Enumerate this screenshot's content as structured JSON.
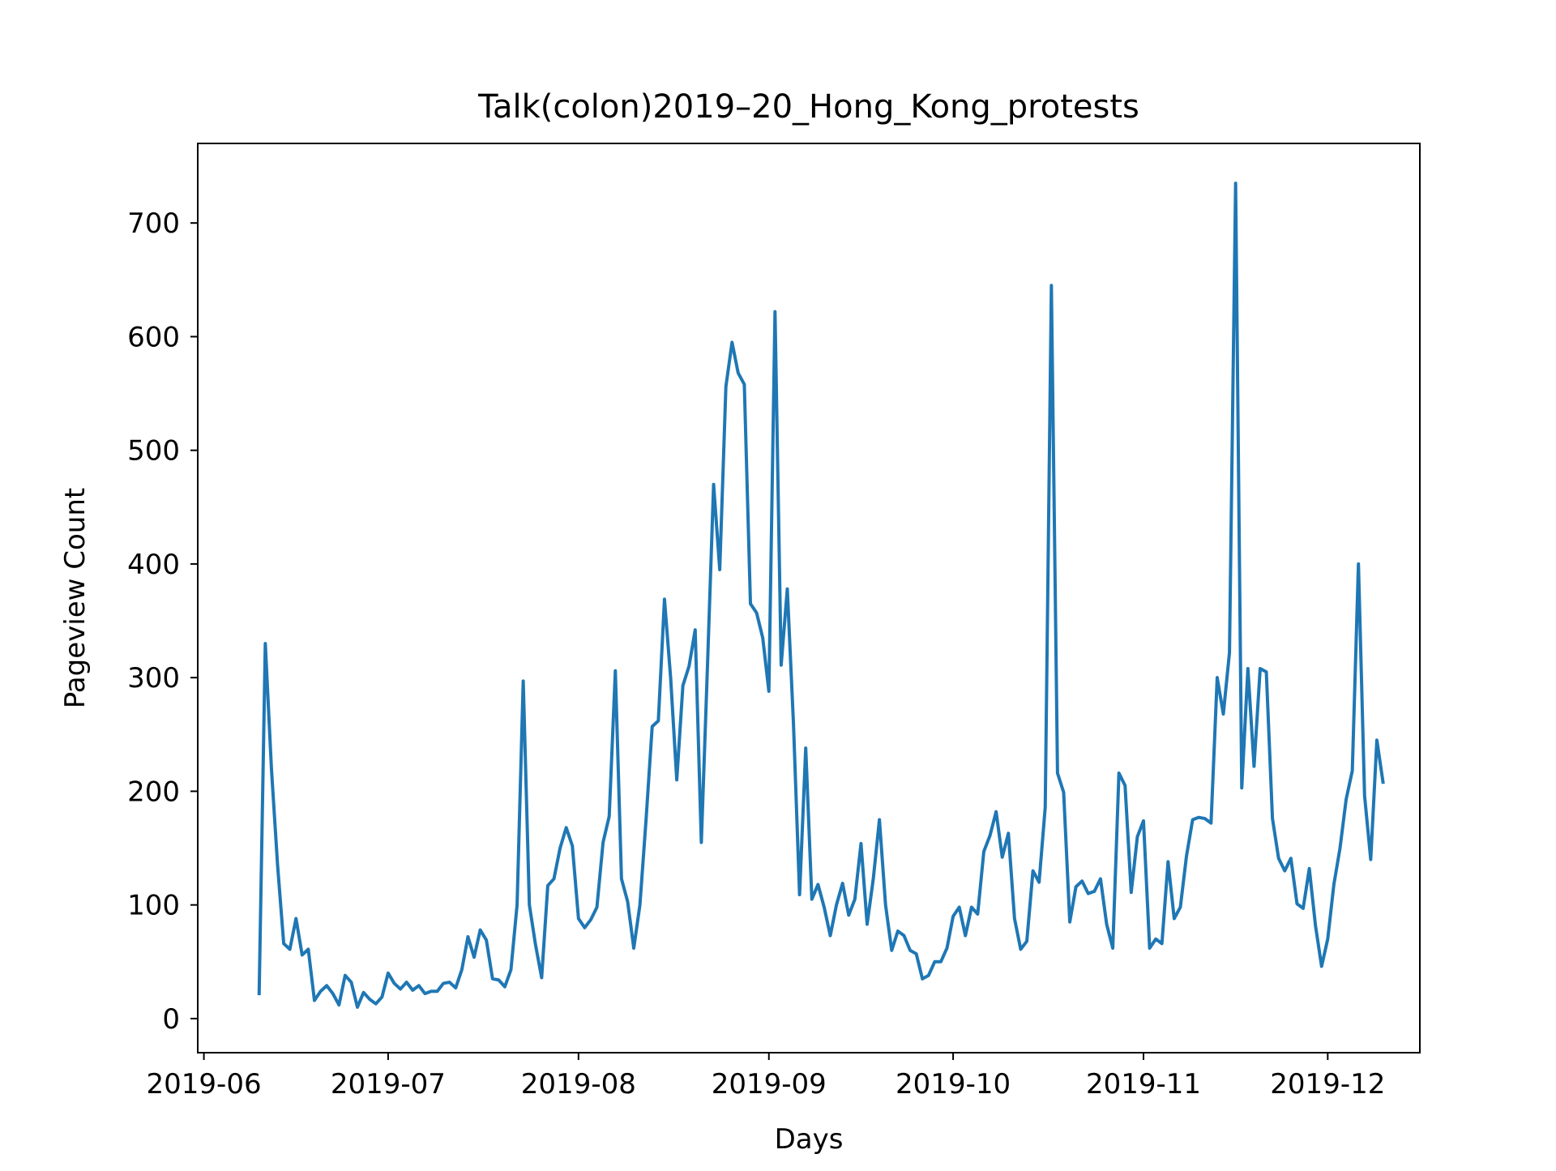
{
  "chart_data": {
    "type": "line",
    "title": "Talk(colon)2019–20_Hong_Kong_protests",
    "xlabel": "Days",
    "ylabel": "Pageview Count",
    "x_ticks": [
      "2019-06",
      "2019-07",
      "2019-08",
      "2019-09",
      "2019-10",
      "2019-11",
      "2019-12"
    ],
    "y_ticks": [
      0,
      100,
      200,
      300,
      400,
      500,
      600,
      700
    ],
    "xlim": [
      "2019-05-31",
      "2019-12-16"
    ],
    "ylim": [
      -30,
      770
    ],
    "grid": false,
    "colors": {
      "line": "#1f77b4",
      "axes": "#000000",
      "background": "#ffffff"
    },
    "series": [
      {
        "start_date": "2019-06-10",
        "values": [
          22,
          330,
          220,
          135,
          66,
          61,
          88,
          56,
          61,
          16,
          24,
          29,
          22,
          12,
          38,
          32,
          10,
          23,
          17,
          13,
          19,
          40,
          31,
          26,
          32,
          25,
          29,
          22,
          24,
          24,
          31,
          32,
          27,
          43,
          72,
          54,
          78,
          69,
          35,
          34,
          28,
          43,
          100,
          297,
          100,
          65,
          36,
          117,
          123,
          150,
          168,
          152,
          88,
          80,
          87,
          98,
          155,
          178,
          306,
          123,
          103,
          62,
          100,
          175,
          257,
          262,
          369,
          300,
          210,
          293,
          310,
          342,
          155,
          310,
          470,
          395,
          556,
          595,
          568,
          558,
          365,
          357,
          335,
          288,
          622,
          311,
          378,
          260,
          109,
          238,
          105,
          118,
          98,
          73,
          100,
          119,
          91,
          105,
          154,
          83,
          123,
          175,
          100,
          60,
          77,
          73,
          60,
          57,
          35,
          38,
          50,
          50,
          62,
          90,
          98,
          73,
          98,
          92,
          147,
          161,
          182,
          142,
          163,
          88,
          61,
          68,
          130,
          120,
          186,
          645,
          216,
          199,
          85,
          116,
          121,
          110,
          112,
          123,
          83,
          62,
          216,
          205,
          111,
          160,
          174,
          62,
          70,
          66,
          138,
          88,
          98,
          143,
          175,
          177,
          176,
          172,
          300,
          268,
          322,
          735,
          203,
          308,
          222,
          308,
          305,
          176,
          141,
          130,
          141,
          101,
          97,
          132,
          82,
          46,
          70,
          118,
          150,
          193,
          218,
          400,
          196,
          140,
          245,
          208
        ]
      }
    ]
  }
}
